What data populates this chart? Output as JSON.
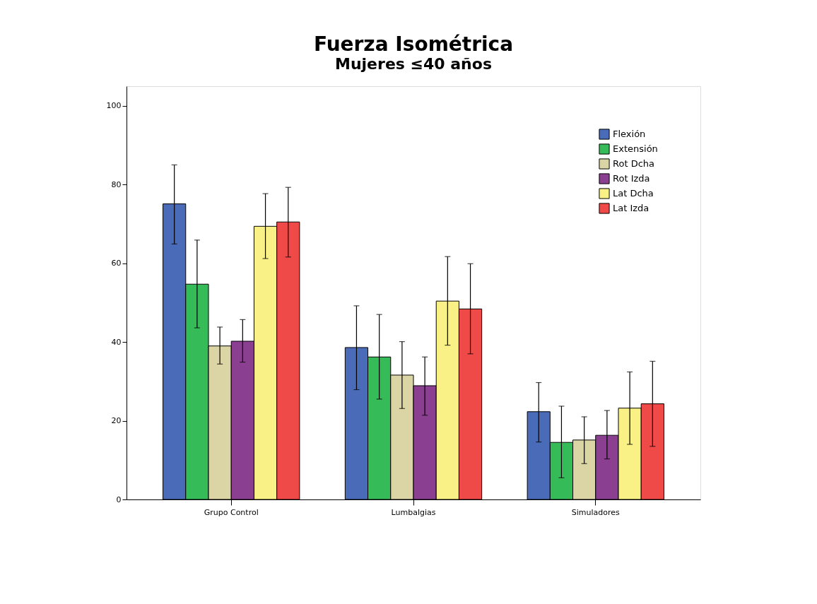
{
  "chart_data": {
    "type": "bar",
    "title": "Fuerza Isométrica",
    "subtitle": "Mujeres ≤40 años",
    "categories": [
      "Grupo Control",
      "Lumbalgias",
      "Simuladores"
    ],
    "series": [
      {
        "name": "Flexión",
        "color": "#4a6bb8",
        "values": [
          75.1,
          38.6,
          22.3
        ],
        "errors": [
          [
            64.9,
            85.0
          ],
          [
            27.9,
            49.2
          ],
          [
            14.6,
            29.7
          ]
        ]
      },
      {
        "name": "Extensión",
        "color": "#35bc58",
        "values": [
          54.7,
          36.2,
          14.5
        ],
        "errors": [
          [
            43.6,
            65.9
          ],
          [
            25.5,
            47.0
          ],
          [
            5.5,
            23.7
          ]
        ]
      },
      {
        "name": "Rot Dcha",
        "color": "#dbd4a4",
        "values": [
          39.0,
          31.6,
          15.1
        ],
        "errors": [
          [
            34.4,
            43.8
          ],
          [
            23.1,
            40.1
          ],
          [
            9.1,
            21.0
          ]
        ]
      },
      {
        "name": "Rot Izda",
        "color": "#8b3f91",
        "values": [
          40.2,
          28.9,
          16.3
        ],
        "errors": [
          [
            34.9,
            45.7
          ],
          [
            21.4,
            36.2
          ],
          [
            10.3,
            22.6
          ]
        ]
      },
      {
        "name": "Lat Dcha",
        "color": "#f9f185",
        "values": [
          69.4,
          50.4,
          23.2
        ],
        "errors": [
          [
            61.2,
            77.7
          ],
          [
            39.2,
            61.7
          ],
          [
            14.0,
            32.4
          ]
        ]
      },
      {
        "name": "Lat Izda",
        "color": "#ef4a48",
        "values": [
          70.5,
          48.4,
          24.3
        ],
        "errors": [
          [
            61.6,
            79.3
          ],
          [
            37.0,
            59.9
          ],
          [
            13.5,
            35.1
          ]
        ]
      }
    ],
    "ylim": [
      0,
      105
    ],
    "yticks": [
      0,
      20,
      40,
      60,
      80,
      100
    ],
    "grid": false,
    "legend": "top right"
  }
}
